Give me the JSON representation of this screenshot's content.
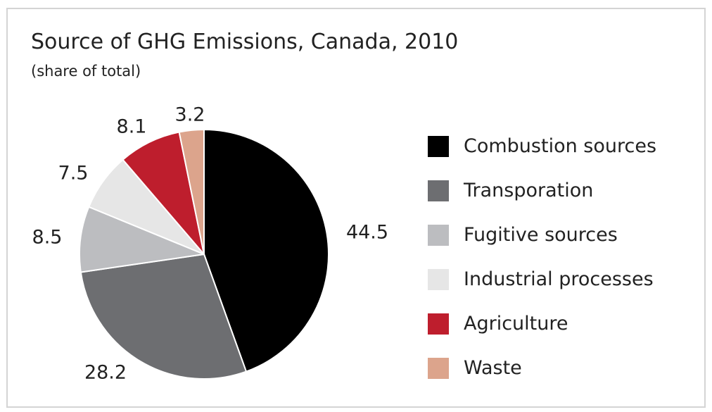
{
  "chart_data": {
    "type": "pie",
    "title": "Source of GHG Emissions, Canada, 2010",
    "subtitle": "(share of total)",
    "legend_position": "right",
    "slices": [
      {
        "label": "Combustion sources",
        "value": 44.5,
        "value_label": "44.5",
        "color": "#000000"
      },
      {
        "label": "Transporation",
        "value": 28.2,
        "value_label": "28.2",
        "color": "#6d6e71"
      },
      {
        "label": "Fugitive sources",
        "value": 8.5,
        "value_label": "8.5",
        "color": "#bcbdc0"
      },
      {
        "label": "Industrial processes",
        "value": 7.5,
        "value_label": "7.5",
        "color": "#e6e6e6"
      },
      {
        "label": "Agriculture",
        "value": 8.1,
        "value_label": "8.1",
        "color": "#be1e2d"
      },
      {
        "label": "Waste",
        "value": 3.2,
        "value_label": "3.2",
        "color": "#dca48c"
      }
    ]
  }
}
